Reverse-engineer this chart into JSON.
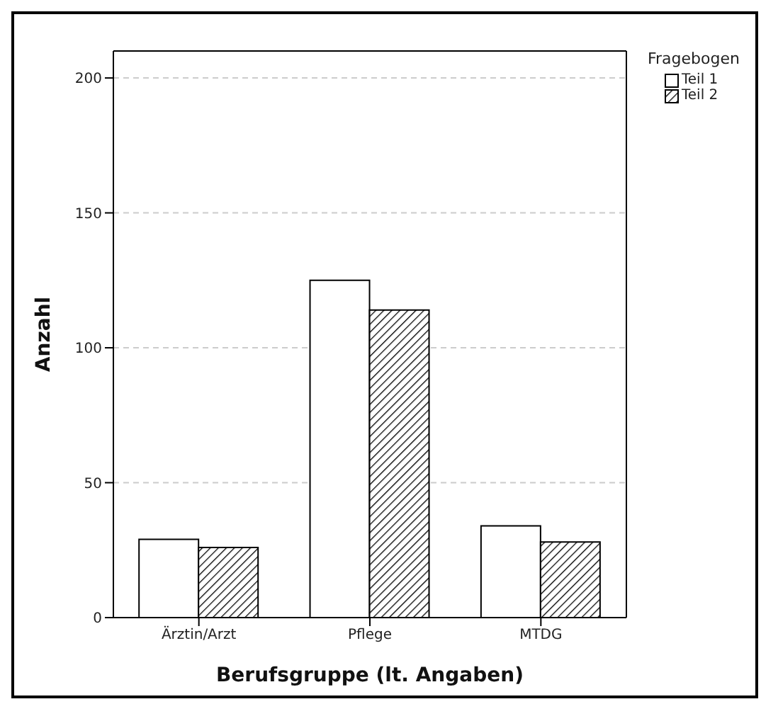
{
  "chart_data": {
    "type": "bar",
    "xlabel": "Berufsgruppe (lt. Angaben)",
    "ylabel": "Anzahl",
    "legend_title": "Fragebogen",
    "categories": [
      "Ärztin/Arzt",
      "Pflege",
      "MTDG"
    ],
    "series": [
      {
        "name": "Teil 1",
        "color": "#ffffff",
        "values": [
          29,
          125,
          34
        ]
      },
      {
        "name": "Teil 2",
        "color": "#000000",
        "values": [
          26,
          114,
          28
        ]
      }
    ],
    "ylim": [
      0,
      210
    ],
    "yticks": [
      0,
      50,
      100,
      150,
      200
    ],
    "grid": "y",
    "legend": "top right"
  }
}
